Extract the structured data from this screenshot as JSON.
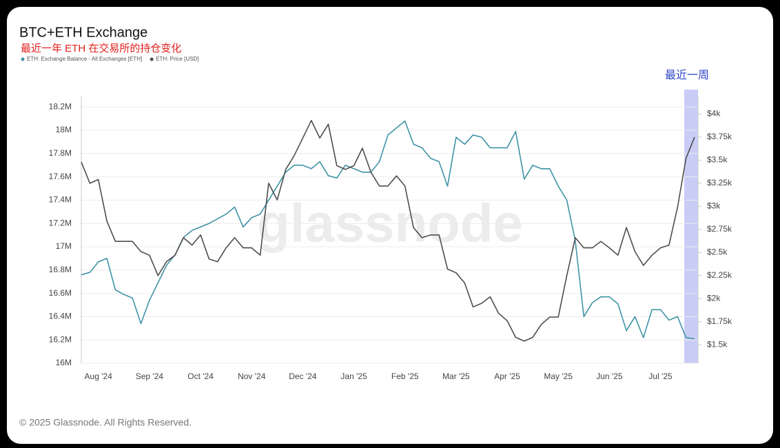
{
  "chart_data": {
    "type": "line",
    "title": "BTC+ETH Exchange",
    "subtitle": "最近一年 ETH 在交易所的持仓变化",
    "annotation": "最近一周",
    "watermark": "glassnode",
    "categories": [
      null,
      null,
      "Aug '24",
      null,
      null,
      null,
      null,
      null,
      "Sep '24",
      null,
      null,
      null,
      null,
      null,
      "Oct '24",
      null,
      null,
      null,
      null,
      null,
      "Nov '24",
      null,
      null,
      null,
      null,
      null,
      "Dec '24",
      null,
      null,
      null,
      null,
      null,
      "Jan '25",
      null,
      null,
      null,
      null,
      null,
      "Feb '25",
      null,
      null,
      null,
      null,
      null,
      "Mar '25",
      null,
      null,
      null,
      null,
      null,
      "Apr '25",
      null,
      null,
      null,
      null,
      null,
      "May '25",
      null,
      null,
      null,
      null,
      null,
      "Jun '25",
      null,
      null,
      null,
      null,
      null,
      "Jul '25",
      null,
      null,
      null,
      null
    ],
    "series": [
      {
        "name": "ETH: Exchange Balance - All Exchanges [ETH]",
        "color": "#3f93a5",
        "axis": "y",
        "values": [
          16760000,
          16780000,
          16870000,
          16900000,
          16630000,
          16590000,
          16560000,
          16340000,
          16540000,
          16690000,
          16840000,
          16930000,
          17080000,
          17140000,
          17170000,
          17200000,
          17240000,
          17280000,
          17340000,
          17170000,
          17250000,
          17280000,
          17400000,
          17520000,
          17640000,
          17700000,
          17700000,
          17670000,
          17730000,
          17610000,
          17590000,
          17700000,
          17670000,
          17640000,
          17640000,
          17730000,
          17960000,
          18020000,
          18080000,
          17880000,
          17850000,
          17760000,
          17730000,
          17520000,
          17940000,
          17880000,
          17960000,
          17940000,
          17850000,
          17850000,
          17850000,
          17990000,
          17580000,
          17700000,
          17670000,
          17670000,
          17520000,
          17400000,
          17050000,
          16400000,
          16520000,
          16570000,
          16570000,
          16510000,
          16280000,
          16400000,
          16220000,
          16460000,
          16460000,
          16370000,
          16400000,
          16220000,
          16210000
        ]
      },
      {
        "name": "ETH: Price [USD]",
        "color": "#4d4d4d",
        "axis": "y2",
        "values": [
          3480,
          3250,
          3290,
          2840,
          2620,
          2620,
          2620,
          2510,
          2470,
          2250,
          2400,
          2470,
          2660,
          2580,
          2690,
          2430,
          2400,
          2550,
          2660,
          2550,
          2550,
          2470,
          3250,
          3070,
          3400,
          3550,
          3740,
          3930,
          3740,
          3890,
          3440,
          3400,
          3440,
          3630,
          3370,
          3220,
          3220,
          3330,
          3220,
          2770,
          2660,
          2690,
          2690,
          2320,
          2280,
          2170,
          1910,
          1950,
          2020,
          1840,
          1760,
          1580,
          1540,
          1580,
          1720,
          1800,
          1800,
          2250,
          2660,
          2550,
          2550,
          2620,
          2550,
          2470,
          2770,
          2510,
          2360,
          2470,
          2550,
          2580,
          2990,
          3520,
          3750
        ]
      }
    ],
    "ylim": [
      16000000,
      18290000
    ],
    "yticks": [
      {
        "value": 16000000,
        "label": "16M"
      },
      {
        "value": 16200000,
        "label": "16.2M"
      },
      {
        "value": 16400000,
        "label": "16.4M"
      },
      {
        "value": 16600000,
        "label": "16.6M"
      },
      {
        "value": 16800000,
        "label": "16.8M"
      },
      {
        "value": 17000000,
        "label": "17M"
      },
      {
        "value": 17200000,
        "label": "17.2M"
      },
      {
        "value": 17400000,
        "label": "17.4M"
      },
      {
        "value": 17600000,
        "label": "17.6M"
      },
      {
        "value": 17800000,
        "label": "17.8M"
      },
      {
        "value": 18000000,
        "label": "18M"
      },
      {
        "value": 18200000,
        "label": "18.2M"
      }
    ],
    "y2lim": [
      1300,
      4190
    ],
    "y2ticks": [
      {
        "value": 1500,
        "label": "$1.5k"
      },
      {
        "value": 1750,
        "label": "$1.75k"
      },
      {
        "value": 2000,
        "label": "$2k"
      },
      {
        "value": 2250,
        "label": "$2.25k"
      },
      {
        "value": 2500,
        "label": "$2.5k"
      },
      {
        "value": 2750,
        "label": "$2.75k"
      },
      {
        "value": 3000,
        "label": "$3k"
      },
      {
        "value": 3250,
        "label": "$3.25k"
      },
      {
        "value": 3500,
        "label": "$3.5k"
      },
      {
        "value": 3750,
        "label": "$3.75k"
      },
      {
        "value": 4000,
        "label": "$4k"
      }
    ],
    "grid": true
  },
  "footer": "© 2025 Glassnode. All Rights Reserved."
}
